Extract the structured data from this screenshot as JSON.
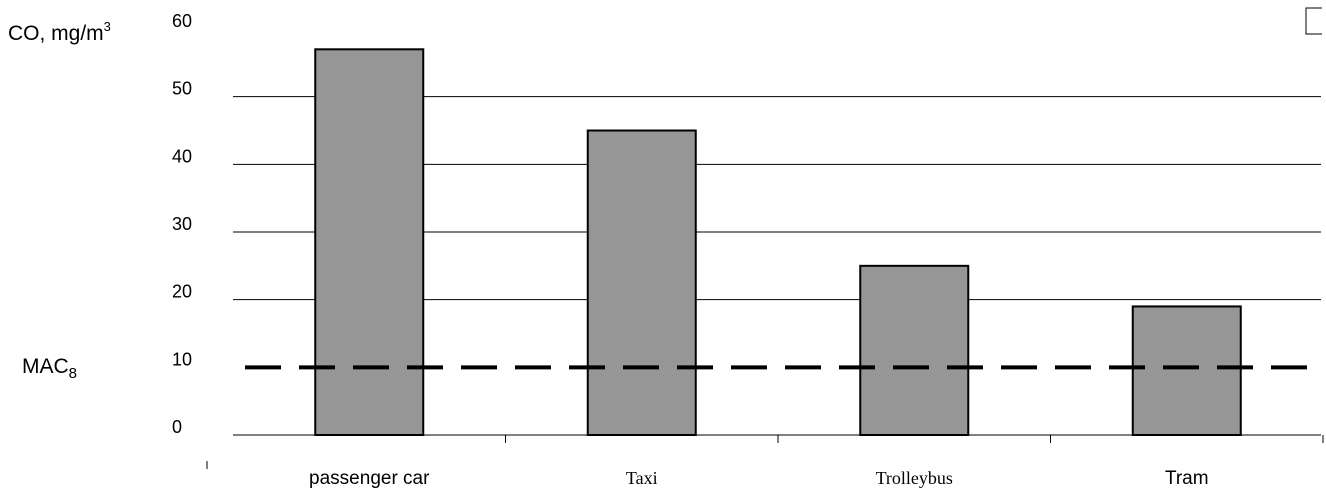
{
  "chart_data": {
    "type": "bar",
    "ylabel": "CO, mg/m",
    "ylabel_sup": "3",
    "categories": [
      "passenger car",
      "Taxi",
      "Trolleybus",
      "Tram"
    ],
    "values": [
      57,
      45,
      25,
      19
    ],
    "yticks": [
      "60",
      "50",
      "40",
      "30",
      "20",
      "10",
      "0"
    ],
    "ylim": [
      0,
      60
    ],
    "grid": true,
    "reference_line": {
      "label": "MAC",
      "label_sub": "8",
      "value": 10,
      "style": "dashed"
    },
    "bar_color": "#969696",
    "bar_stroke": "#000000",
    "grid_color": "#000000"
  }
}
